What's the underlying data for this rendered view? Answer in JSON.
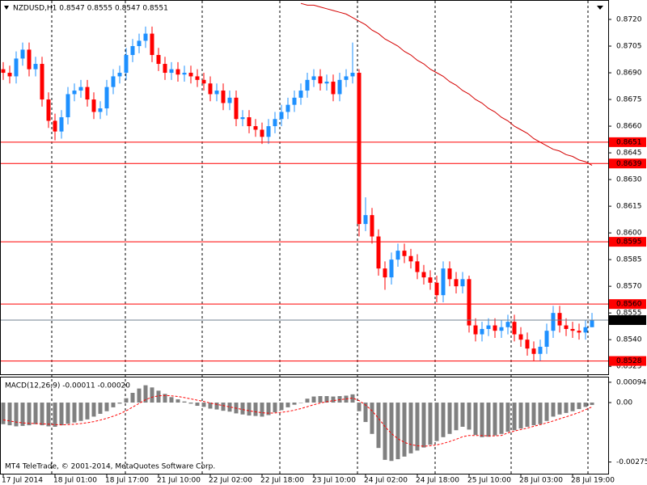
{
  "chart_data": [
    {
      "type": "candlestick",
      "title": "NZDUSD,H1 0.8547 0.8555 0.8547 0.8551",
      "footer": "MT4 TeleTrade, © 2001-2014, MetaQuotes Software Corp.",
      "categories": [
        "17 Jul 2014",
        null,
        null,
        null,
        null,
        null,
        null,
        null,
        "18 Jul 01:00",
        null,
        null,
        null,
        null,
        null,
        null,
        null,
        "18 Jul 17:00",
        null,
        null,
        null,
        null,
        null,
        null,
        null,
        "21 Jul 10:00",
        null,
        null,
        null,
        null,
        null,
        null,
        null,
        "22 Jul 02:00",
        null,
        null,
        null,
        null,
        null,
        null,
        null,
        "22 Jul 18:00",
        null,
        null,
        null,
        null,
        null,
        null,
        null,
        "23 Jul 10:00",
        null,
        null,
        null,
        null,
        null,
        null,
        null,
        "24 Jul 02:00",
        null,
        null,
        null,
        null,
        null,
        null,
        null,
        "24 Jul 18:00",
        null,
        null,
        null,
        null,
        null,
        null,
        null,
        "25 Jul 10:00",
        null,
        null,
        null,
        null,
        null,
        null,
        null,
        "28 Jul 03:00",
        null,
        null,
        null,
        null,
        null,
        null,
        null,
        "28 Jul 19:00",
        null,
        null,
        null
      ],
      "open": [
        0.8692,
        0.869,
        0.8688,
        0.8698,
        0.8703,
        0.8692,
        0.8695,
        0.8675,
        0.8663,
        0.8657,
        0.8665,
        0.8678,
        0.868,
        0.8682,
        0.8675,
        0.8668,
        0.867,
        0.8682,
        0.8688,
        0.869,
        0.87,
        0.8705,
        0.8708,
        0.8712,
        0.87,
        0.8695,
        0.869,
        0.8692,
        0.8689,
        0.869,
        0.8688,
        0.8686,
        0.8684,
        0.8678,
        0.868,
        0.8673,
        0.8676,
        0.8664,
        0.8665,
        0.866,
        0.8658,
        0.8654,
        0.866,
        0.8664,
        0.8668,
        0.8672,
        0.8676,
        0.868,
        0.8686,
        0.8688,
        0.8684,
        0.8685,
        0.8678,
        0.8686,
        0.8688,
        0.869,
        0.8605,
        0.861,
        0.8598,
        0.858,
        0.8575,
        0.8585,
        0.859,
        0.8587,
        0.8584,
        0.8578,
        0.8575,
        0.8572,
        0.8565,
        0.858,
        0.8574,
        0.857,
        0.8574,
        0.8548,
        0.8543,
        0.8546,
        0.8548,
        0.8545,
        0.8547,
        0.855,
        0.8543,
        0.854,
        0.8535,
        0.8532,
        0.8536,
        0.8545,
        0.8555,
        0.8548,
        0.8546,
        0.8545,
        0.8544,
        0.8547
      ],
      "high": [
        0.8696,
        0.8694,
        0.8702,
        0.8707,
        0.8707,
        0.8699,
        0.8699,
        0.8679,
        0.8667,
        0.8669,
        0.8682,
        0.8684,
        0.8686,
        0.8686,
        0.8679,
        0.8674,
        0.8686,
        0.8692,
        0.8694,
        0.8704,
        0.8709,
        0.8712,
        0.8716,
        0.8716,
        0.8704,
        0.8699,
        0.8696,
        0.8696,
        0.8694,
        0.8694,
        0.8692,
        0.869,
        0.8688,
        0.8684,
        0.8684,
        0.868,
        0.868,
        0.8669,
        0.8669,
        0.8664,
        0.8662,
        0.8664,
        0.8668,
        0.8672,
        0.8676,
        0.868,
        0.8684,
        0.869,
        0.8692,
        0.8692,
        0.8689,
        0.8689,
        0.869,
        0.8692,
        0.8707,
        0.8692,
        0.862,
        0.8614,
        0.8602,
        0.8584,
        0.8589,
        0.8594,
        0.8594,
        0.8591,
        0.8588,
        0.8582,
        0.8579,
        0.8576,
        0.8584,
        0.8584,
        0.8578,
        0.8578,
        0.8576,
        0.8552,
        0.855,
        0.8552,
        0.8552,
        0.8551,
        0.8554,
        0.8554,
        0.8547,
        0.8544,
        0.8539,
        0.854,
        0.8549,
        0.8559,
        0.8559,
        0.8552,
        0.855,
        0.8549,
        0.8551,
        0.8555
      ],
      "low": [
        0.8686,
        0.8684,
        0.8684,
        0.8694,
        0.8688,
        0.8688,
        0.8671,
        0.8659,
        0.8652,
        0.8653,
        0.8661,
        0.8674,
        0.8676,
        0.8671,
        0.8664,
        0.8664,
        0.8666,
        0.8678,
        0.8684,
        0.8686,
        0.8696,
        0.8701,
        0.8704,
        0.8696,
        0.8691,
        0.8686,
        0.8686,
        0.8685,
        0.8685,
        0.8684,
        0.8682,
        0.868,
        0.8674,
        0.8674,
        0.8669,
        0.8669,
        0.866,
        0.866,
        0.8656,
        0.8654,
        0.865,
        0.865,
        0.8656,
        0.866,
        0.8664,
        0.8668,
        0.8672,
        0.8676,
        0.8682,
        0.868,
        0.868,
        0.8674,
        0.8674,
        0.8682,
        0.8684,
        0.8598,
        0.8601,
        0.8594,
        0.8576,
        0.8568,
        0.8571,
        0.8581,
        0.8583,
        0.858,
        0.8574,
        0.8571,
        0.8568,
        0.8561,
        0.8561,
        0.857,
        0.8566,
        0.8566,
        0.8544,
        0.8539,
        0.8539,
        0.8542,
        0.8541,
        0.8541,
        0.8543,
        0.8539,
        0.8536,
        0.8531,
        0.8528,
        0.8528,
        0.8532,
        0.8541,
        0.8544,
        0.8542,
        0.8541,
        0.854,
        0.854,
        0.8547
      ],
      "close": [
        0.869,
        0.8688,
        0.8698,
        0.8703,
        0.8692,
        0.8695,
        0.8675,
        0.8663,
        0.8657,
        0.8665,
        0.8678,
        0.868,
        0.8682,
        0.8675,
        0.8668,
        0.867,
        0.8682,
        0.8688,
        0.869,
        0.87,
        0.8705,
        0.8708,
        0.8712,
        0.87,
        0.8695,
        0.869,
        0.8692,
        0.8689,
        0.869,
        0.8688,
        0.8686,
        0.8684,
        0.8678,
        0.868,
        0.8673,
        0.8676,
        0.8664,
        0.8665,
        0.866,
        0.8658,
        0.8654,
        0.866,
        0.8664,
        0.8668,
        0.8672,
        0.8676,
        0.868,
        0.8686,
        0.8688,
        0.8684,
        0.8685,
        0.8678,
        0.8686,
        0.8688,
        0.869,
        0.8605,
        0.861,
        0.8598,
        0.858,
        0.8575,
        0.8585,
        0.859,
        0.8587,
        0.8584,
        0.8578,
        0.8575,
        0.8572,
        0.8565,
        0.858,
        0.8574,
        0.857,
        0.8574,
        0.8548,
        0.8543,
        0.8546,
        0.8548,
        0.8545,
        0.8547,
        0.855,
        0.8543,
        0.854,
        0.8535,
        0.8532,
        0.8536,
        0.8545,
        0.8555,
        0.8548,
        0.8546,
        0.8545,
        0.8544,
        0.8547,
        0.8551
      ],
      "ma": [
        null,
        null,
        null,
        null,
        null,
        null,
        null,
        null,
        null,
        null,
        null,
        null,
        null,
        null,
        null,
        null,
        null,
        null,
        null,
        null,
        null,
        null,
        null,
        null,
        null,
        null,
        null,
        null,
        null,
        null,
        null,
        null,
        null,
        null,
        null,
        null,
        null,
        null,
        null,
        null,
        null,
        null,
        null,
        null,
        null,
        null,
        0.8729,
        0.8728,
        0.8728,
        0.8727,
        0.8726,
        0.8725,
        0.8724,
        0.8723,
        0.8721,
        0.8719,
        0.8717,
        0.8714,
        0.8712,
        0.8709,
        0.8707,
        0.8705,
        0.8702,
        0.87,
        0.8697,
        0.8695,
        0.8692,
        0.869,
        0.8688,
        0.8685,
        0.8683,
        0.868,
        0.8678,
        0.8675,
        0.8673,
        0.867,
        0.8668,
        0.8665,
        0.8663,
        0.866,
        0.8658,
        0.8656,
        0.8653,
        0.8651,
        0.8649,
        0.8647,
        0.8646,
        0.8644,
        0.8643,
        0.8641,
        0.864,
        0.8638
      ],
      "bull_color": "#1e90ff",
      "bear_color": "#ff0000",
      "ma_color": "#d40000",
      "levels": [
        0.8651,
        0.8639,
        0.8595,
        {
          "value": 0.856,
          "label": "0.8560"
        },
        0.8528
      ],
      "level_color": "#ff0000",
      "current_price": 0.8551,
      "ylim": [
        0.8521,
        0.873
      ],
      "yticks": [
        {
          "value": 0.872,
          "label": "0.8720"
        },
        0.8705,
        {
          "value": 0.869,
          "label": "0.8690"
        },
        0.8675,
        {
          "value": 0.866,
          "label": "0.8660"
        },
        0.8645,
        {
          "value": 0.863,
          "label": "0.8630"
        },
        0.8615,
        {
          "value": 0.86,
          "label": "0.8600"
        },
        0.8585,
        {
          "value": 0.857,
          "label": "0.8570"
        },
        0.8555,
        {
          "value": 0.854,
          "label": "0.8540"
        },
        0.8525
      ]
    },
    {
      "type": "macd",
      "title": "MACD(12,26,9) -0.00011 -0.00020",
      "series": [
        {
          "color": "#808080",
          "values": [
            -0.001,
            -0.00105,
            -0.0011,
            -0.00108,
            -0.00105,
            -0.001,
            -0.00105,
            -0.0011,
            -0.00112,
            -0.00105,
            -0.00098,
            -0.00092,
            -0.00085,
            -0.00078,
            -0.00065,
            -0.00052,
            -0.0004,
            -0.00022,
            -5e-05,
            0.0002,
            0.00045,
            0.00065,
            0.0008,
            0.0007,
            0.00055,
            0.0004,
            0.00025,
            0.00015,
            5e-05,
            -5e-05,
            -0.00015,
            -0.0002,
            -0.00028,
            -0.00032,
            -0.00038,
            -0.00042,
            -0.0005,
            -0.00055,
            -0.0006,
            -0.00062,
            -0.00065,
            -0.00058,
            -0.00045,
            -0.00035,
            -0.00022,
            -0.0001,
            0.0,
            0.00018,
            0.00028,
            0.0003,
            0.0003,
            0.00028,
            0.0003,
            0.00032,
            0.00038,
            -0.0004,
            -0.0009,
            -0.00145,
            -0.0021,
            -0.00265,
            -0.0027,
            -0.00262,
            -0.0025,
            -0.00235,
            -0.00222,
            -0.00208,
            -0.00195,
            -0.00178,
            -0.0016,
            -0.00145,
            -0.00128,
            -0.00112,
            -0.00125,
            -0.0015,
            -0.0016,
            -0.00158,
            -0.00152,
            -0.00145,
            -0.00135,
            -0.00128,
            -0.0012,
            -0.00112,
            -0.00105,
            -0.001,
            -0.00085,
            -0.00065,
            -0.00055,
            -0.00048,
            -0.0004,
            -0.0003,
            -0.0002,
            -0.00011
          ]
        },
        {
          "color": "#ff0000",
          "values": [
            -0.0008,
            -0.00085,
            -0.0009,
            -0.00094,
            -0.00096,
            -0.00097,
            -0.00098,
            -0.001,
            -0.00102,
            -0.00103,
            -0.00102,
            -0.001,
            -0.00097,
            -0.00093,
            -0.00088,
            -0.00081,
            -0.00073,
            -0.00063,
            -0.00052,
            -0.00038,
            -0.00021,
            -4e-05,
            0.00013,
            0.00025,
            0.00031,
            0.00033,
            0.00031,
            0.00028,
            0.00023,
            0.00017,
            0.00011,
            5e-05,
            -2e-05,
            -8e-05,
            -0.00014,
            -0.0002,
            -0.00026,
            -0.00032,
            -0.00038,
            -0.00043,
            -0.00047,
            -0.00049,
            -0.00048,
            -0.00045,
            -0.00041,
            -0.00035,
            -0.00028,
            -0.00019,
            -0.0001,
            -2e-05,
            4e-05,
            9e-05,
            0.00013,
            0.00017,
            0.00021,
            9e-05,
            -0.00011,
            -0.00038,
            -0.00073,
            -0.00111,
            -0.00143,
            -0.00167,
            -0.00184,
            -0.00194,
            -0.002,
            -0.00202,
            -0.002,
            -0.00196,
            -0.00189,
            -0.0018,
            -0.0017,
            -0.00158,
            -0.00152,
            -0.00152,
            -0.00153,
            -0.00154,
            -0.00154,
            -0.00152,
            -0.0014,
            -0.00132,
            -0.00125,
            -0.00118,
            -0.0011,
            -0.00102,
            -0.00094,
            -0.00085,
            -0.00075,
            -0.00066,
            -0.00056,
            -0.00046,
            -0.00033,
            -0.0002
          ]
        }
      ],
      "ylim": [
        -0.00329,
        0.00116
      ],
      "yticks": [
        0.00094,
        {
          "value": 0,
          "label": "0.00"
        },
        -0.00275
      ]
    }
  ]
}
